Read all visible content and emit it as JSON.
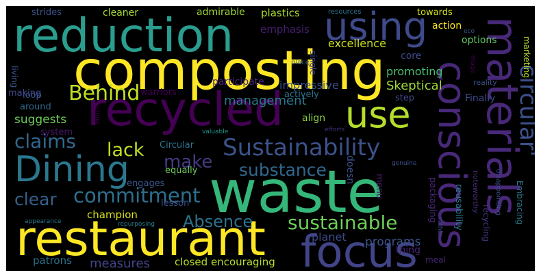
{
  "words": [
    {
      "text": "waste",
      "color": "#35b779"
    },
    {
      "text": "composting",
      "color": "#fde725"
    },
    {
      "text": "restaurant",
      "color": "#fde725"
    },
    {
      "text": "recycled",
      "color": "#440154"
    },
    {
      "text": "reduction",
      "color": "#2a9d8f"
    },
    {
      "text": "focus",
      "color": "#414487"
    },
    {
      "text": "materials",
      "color": "#482878"
    },
    {
      "text": "conscious",
      "color": "#482878"
    },
    {
      "text": "using",
      "color": "#3e4a89"
    },
    {
      "text": "Dining",
      "color": "#2a788e"
    },
    {
      "text": "use",
      "color": "#b5de2b"
    },
    {
      "text": "circular'",
      "color": "#3b528b"
    },
    {
      "text": "Sustainability",
      "color": "#3b528b"
    },
    {
      "text": "Behind",
      "color": "#c2df23"
    },
    {
      "text": "commitment",
      "color": "#2e6f8e"
    },
    {
      "text": "sustainable",
      "color": "#6ece58"
    },
    {
      "text": "claims",
      "color": "#31688e"
    },
    {
      "text": "lack",
      "color": "#c2df23"
    },
    {
      "text": "make",
      "color": "#443a83"
    },
    {
      "text": "substance",
      "color": "#31688e"
    },
    {
      "text": "clear",
      "color": "#35608d"
    },
    {
      "text": "Absence",
      "color": "#2c728e"
    },
    {
      "text": "measures",
      "color": "#414487"
    },
    {
      "text": "management",
      "color": "#2a788e"
    },
    {
      "text": "suggests",
      "color": "#6ece58"
    },
    {
      "text": "programs",
      "color": "#3b528b"
    },
    {
      "text": "planet",
      "color": "#3e4a89"
    },
    {
      "text": "champion",
      "color": "#d8e219"
    },
    {
      "text": "encouraging",
      "color": "#b5de2b"
    },
    {
      "text": "patrons",
      "color": "#2c728e"
    },
    {
      "text": "closed",
      "color": "#b5de2b"
    },
    {
      "text": "Skeptical",
      "color": "#a0da39"
    },
    {
      "text": "promoting",
      "color": "#46c06f"
    },
    {
      "text": "excellence",
      "color": "#cde11d"
    },
    {
      "text": "impressive",
      "color": "#3b528b"
    },
    {
      "text": "emphasis",
      "color": "#481f70"
    },
    {
      "text": "plastics",
      "color": "#addc30"
    },
    {
      "text": "admirable",
      "color": "#9fda3a"
    },
    {
      "text": "cleaner",
      "color": "#a8db34"
    },
    {
      "text": "strides",
      "color": "#3b528b"
    },
    {
      "text": "towards",
      "color": "#d2e21b"
    },
    {
      "text": "action",
      "color": "#fde725"
    },
    {
      "text": "options",
      "color": "#5ec962"
    },
    {
      "text": "core",
      "color": "#3e4a89"
    },
    {
      "text": "warriors",
      "color": "#440154"
    },
    {
      "text": "participate",
      "color": "#482677"
    },
    {
      "text": "actively",
      "color": "#2c728e"
    },
    {
      "text": "step",
      "color": "#3f4788"
    },
    {
      "text": "Finally",
      "color": "#3e4a89"
    },
    {
      "text": "align",
      "color": "#90d743"
    },
    {
      "text": "thing",
      "color": "#482475"
    },
    {
      "text": "doesn",
      "color": "#3b528b"
    },
    {
      "text": "loop",
      "color": "#3b528b"
    },
    {
      "text": "making",
      "color": "#3e4a89"
    },
    {
      "text": "around",
      "color": "#31688e"
    },
    {
      "text": "system",
      "color": "#481668"
    },
    {
      "text": "Circular",
      "color": "#2c728e"
    },
    {
      "text": "lesson",
      "color": "#3b528b"
    },
    {
      "text": "equally",
      "color": "#6ece58"
    },
    {
      "text": "engages",
      "color": "#39568c"
    },
    {
      "text": "menu",
      "color": "#481c6e"
    },
    {
      "text": "packaging",
      "color": "#482878"
    },
    {
      "text": "reusability",
      "color": "#2a788e"
    },
    {
      "text": "recycling",
      "color": "#46337e"
    },
    {
      "text": "noteworthy",
      "color": "#472c7a"
    },
    {
      "text": "disappointing",
      "color": "#3e4a89"
    },
    {
      "text": "Embracing",
      "color": "#2a788e"
    },
    {
      "text": "marketing",
      "color": "#b5de2b"
    },
    {
      "text": "reality",
      "color": "#3b528b"
    },
    {
      "text": "living",
      "color": "#39568c"
    },
    {
      "text": "single",
      "color": "#414487"
    },
    {
      "text": "place",
      "color": "#355f8d"
    },
    {
      "text": "image",
      "color": "#440154"
    },
    {
      "text": "eco",
      "color": "#39568c"
    },
    {
      "text": "resources",
      "color": "#2c728e"
    },
    {
      "text": "valuable",
      "color": "#1f988b"
    },
    {
      "text": "efforts",
      "color": "#46337e"
    },
    {
      "text": "turning",
      "color": "#440154"
    },
    {
      "text": "genuine",
      "color": "#3b528b"
    },
    {
      "text": "rather",
      "color": "#414487"
    },
    {
      "text": "appearance",
      "color": "#2a788e"
    },
    {
      "text": "repurposing",
      "color": "#287d8e"
    },
    {
      "text": "meal",
      "color": "#482878"
    }
  ]
}
